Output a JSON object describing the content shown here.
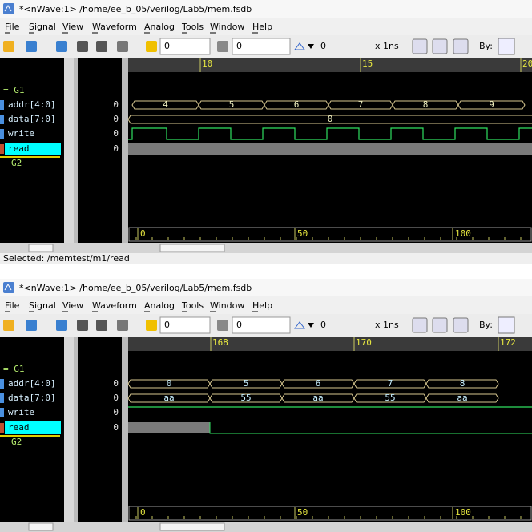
{
  "windows": [
    {
      "title": "*<nWave:1> /home/ee_b_05/verilog/Lab5/mem.fsdb",
      "menu": [
        "File",
        "Signal",
        "View",
        "Waveform",
        "Analog",
        "Tools",
        "Window",
        "Help"
      ],
      "toolbar": {
        "cursor": "0",
        "marker": "0",
        "delta": "0",
        "scale": "x 1ns",
        "by": "By:"
      },
      "ruler_top": [
        "10",
        "15",
        "20"
      ],
      "groups": [
        "= G1",
        "G2"
      ],
      "signals": [
        {
          "name": "addr[4:0]",
          "value": "0",
          "wave": [
            "4",
            "5",
            "6",
            "7",
            "8",
            "9"
          ]
        },
        {
          "name": "data[7:0]",
          "value": "0",
          "wave": [
            "0"
          ]
        },
        {
          "name": "write",
          "value": "0"
        },
        {
          "name": "read",
          "value": "0"
        }
      ],
      "ruler_bottom": [
        "0",
        "50",
        "100"
      ],
      "status": "Selected: /memtest/m1/read"
    },
    {
      "title": "*<nWave:1> /home/ee_b_05/verilog/Lab5/mem.fsdb",
      "menu": [
        "File",
        "Signal",
        "View",
        "Waveform",
        "Analog",
        "Tools",
        "Window",
        "Help"
      ],
      "toolbar": {
        "cursor": "0",
        "marker": "0",
        "delta": "0",
        "scale": "x 1ns",
        "by": "By:"
      },
      "ruler_top": [
        "168",
        "170",
        "172"
      ],
      "groups": [
        "= G1",
        "G2"
      ],
      "signals": [
        {
          "name": "addr[4:0]",
          "value": "0",
          "wave": [
            "0",
            "5",
            "6",
            "7",
            "8"
          ]
        },
        {
          "name": "data[7:0]",
          "value": "0",
          "wave": [
            "aa",
            "55",
            "aa",
            "55",
            "aa"
          ]
        },
        {
          "name": "write",
          "value": "0"
        },
        {
          "name": "read",
          "value": "0"
        }
      ],
      "ruler_bottom": [
        "0",
        "50",
        "100"
      ]
    }
  ]
}
